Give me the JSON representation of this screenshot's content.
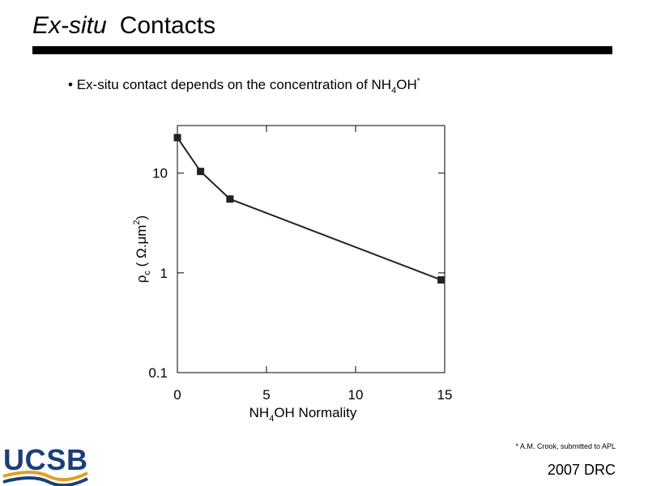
{
  "slide_title": [
    "Ex-situ",
    "Contacts"
  ],
  "bullet": [
    "Ex-situ contact depends on the concentration of NH",
    "4",
    "OH",
    "*"
  ],
  "footnote": "* A.M. Crook, submitted to APL",
  "footer": "2007 DRC",
  "logo": "UCSB",
  "chart_data": {
    "type": "line",
    "x_label": [
      "NH",
      "4",
      "OH Normality"
    ],
    "y_label": [
      "ρ",
      "c",
      " ( Ω.μm",
      "2",
      ")"
    ],
    "x": [
      0,
      1.3,
      2.95,
      14.8
    ],
    "series": [
      {
        "color": "#222222",
        "values": [
          22.7,
          10.4,
          5.5,
          0.85
        ]
      }
    ],
    "xlim": [
      0,
      15
    ],
    "xticks": [
      0,
      5,
      10,
      15
    ],
    "ylim": [
      0.1,
      30
    ],
    "yticks": [
      0.1,
      1,
      10
    ],
    "ylog": true
  }
}
